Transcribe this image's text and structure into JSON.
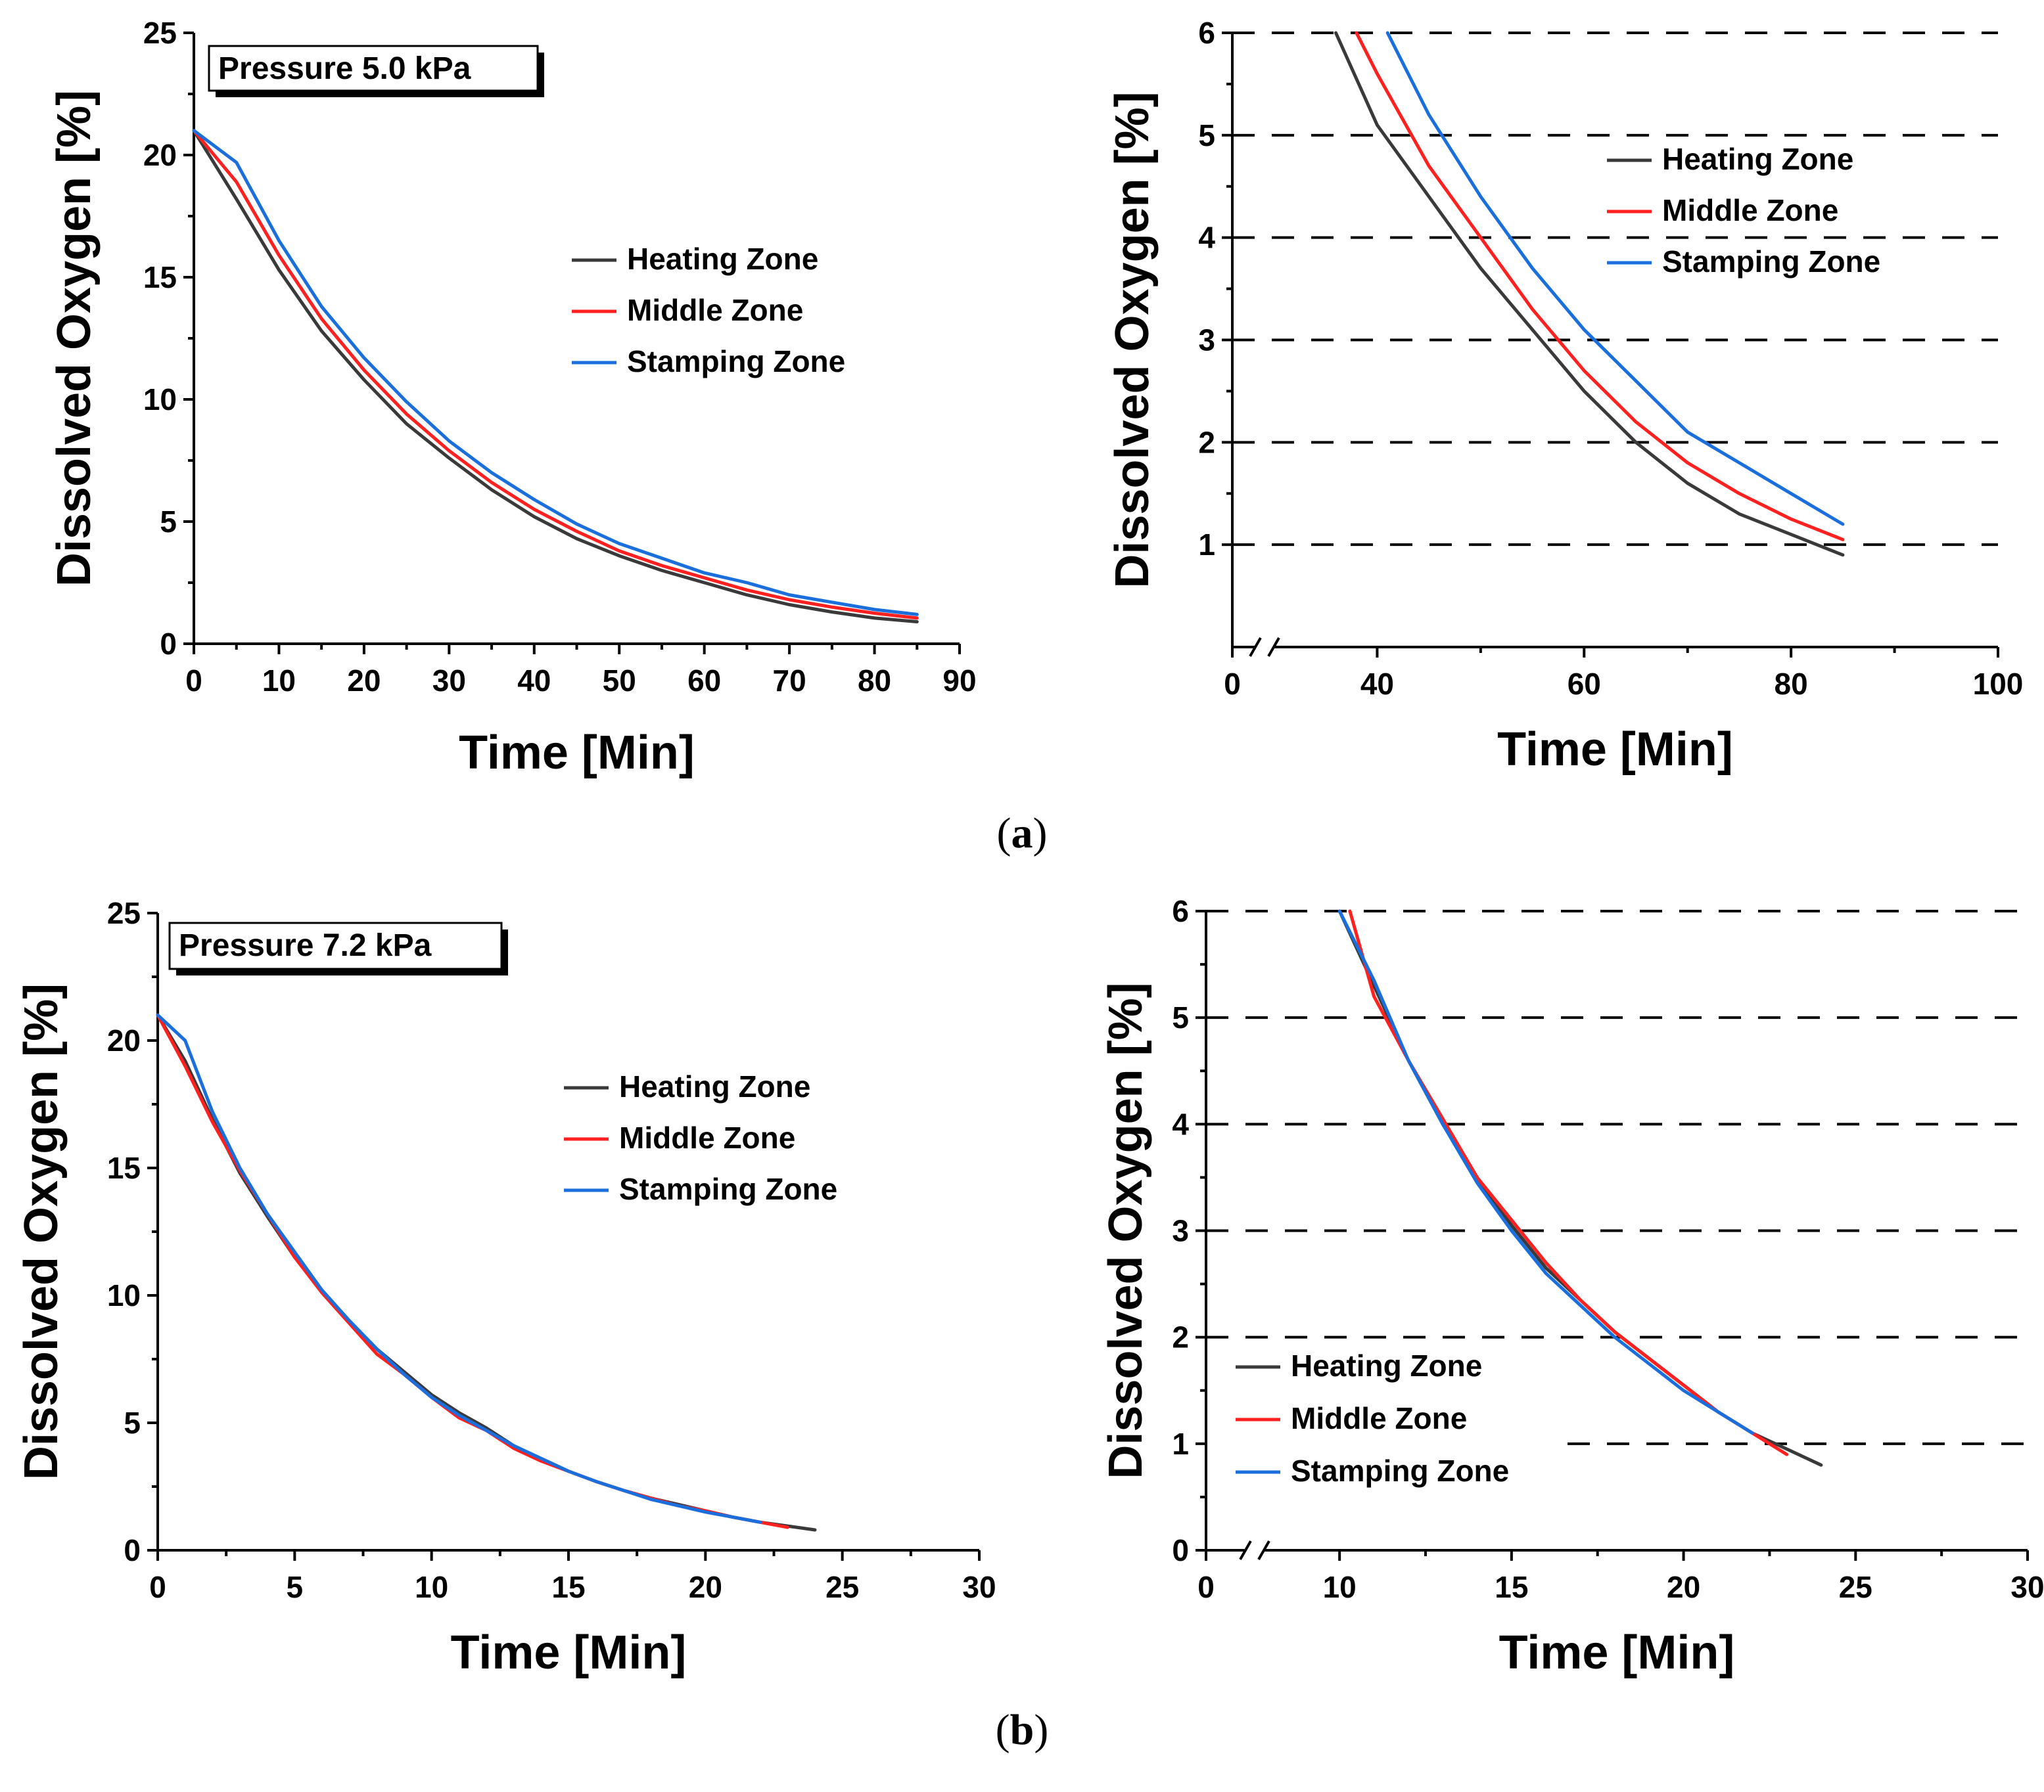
{
  "colors": {
    "heating": "#3a3a3a",
    "middle": "#ff2020",
    "stamping": "#1a6fdc",
    "axis": "#000000"
  },
  "labels": {
    "a": {
      "open": "(",
      "letter": "a",
      "close": ")"
    },
    "b": {
      "open": "(",
      "letter": "b",
      "close": ")"
    }
  },
  "chart_data": [
    {
      "id": "a-left",
      "type": "line",
      "annotation": "Pressure 5.0 kPa",
      "xlabel": "Time [Min]",
      "ylabel": "Dissolved Oxygen [%]",
      "xlim": [
        0,
        90
      ],
      "ylim": [
        0,
        25
      ],
      "xticks": [
        "0",
        "10",
        "20",
        "30",
        "40",
        "50",
        "60",
        "70",
        "80",
        "90"
      ],
      "yticks": [
        "0",
        "5",
        "10",
        "15",
        "20",
        "25"
      ],
      "grid": false,
      "legend_position": "center-right",
      "series": [
        {
          "name": "Heating Zone",
          "color": "#3a3a3a",
          "x": [
            0,
            5,
            10,
            15,
            20,
            25,
            30,
            35,
            40,
            45,
            50,
            55,
            60,
            65,
            70,
            75,
            80,
            85
          ],
          "y": [
            21.0,
            18.2,
            15.3,
            12.8,
            10.8,
            9.0,
            7.6,
            6.3,
            5.2,
            4.3,
            3.6,
            3.0,
            2.5,
            2.0,
            1.6,
            1.3,
            1.05,
            0.9
          ]
        },
        {
          "name": "Middle Zone",
          "color": "#ff2020",
          "x": [
            0,
            5,
            10,
            15,
            20,
            25,
            30,
            35,
            40,
            45,
            50,
            55,
            60,
            65,
            70,
            75,
            80,
            85
          ],
          "y": [
            21.0,
            18.9,
            15.9,
            13.3,
            11.2,
            9.4,
            7.9,
            6.6,
            5.5,
            4.6,
            3.8,
            3.2,
            2.7,
            2.2,
            1.8,
            1.5,
            1.25,
            1.05
          ]
        },
        {
          "name": "Stamping Zone",
          "color": "#1a6fdc",
          "x": [
            0,
            5,
            10,
            15,
            20,
            25,
            30,
            35,
            40,
            45,
            50,
            55,
            60,
            65,
            70,
            75,
            80,
            85
          ],
          "y": [
            21.0,
            19.7,
            16.5,
            13.8,
            11.7,
            9.9,
            8.3,
            7.0,
            5.9,
            4.9,
            4.1,
            3.5,
            2.9,
            2.5,
            2.0,
            1.7,
            1.4,
            1.2
          ]
        }
      ]
    },
    {
      "id": "a-right",
      "type": "line",
      "xlabel": "Time [Min]",
      "ylabel": "Dissolved Oxygen [%]",
      "xlim": [
        0,
        100
      ],
      "ylim": [
        0,
        6
      ],
      "axis_break": true,
      "xticks": [
        "0",
        "40",
        "60",
        "80",
        "100"
      ],
      "yticks": [
        "1",
        "2",
        "3",
        "4",
        "5",
        "6"
      ],
      "grid": "dashed horizontal at y = 1-6",
      "legend_position": "top-right",
      "series": [
        {
          "name": "Heating Zone",
          "color": "#3a3a3a",
          "x": [
            36,
            40,
            45,
            50,
            55,
            60,
            65,
            70,
            75,
            80,
            85
          ],
          "y": [
            6.0,
            5.1,
            4.4,
            3.7,
            3.1,
            2.5,
            2.0,
            1.6,
            1.3,
            1.1,
            0.9
          ]
        },
        {
          "name": "Middle Zone",
          "color": "#ff2020",
          "x": [
            38,
            40,
            45,
            50,
            55,
            60,
            65,
            70,
            75,
            80,
            85
          ],
          "y": [
            6.0,
            5.6,
            4.7,
            4.0,
            3.3,
            2.7,
            2.2,
            1.8,
            1.5,
            1.25,
            1.05
          ]
        },
        {
          "name": "Stamping Zone",
          "color": "#1a6fdc",
          "x": [
            41,
            45,
            50,
            55,
            60,
            65,
            70,
            75,
            80,
            85
          ],
          "y": [
            6.0,
            5.2,
            4.4,
            3.7,
            3.1,
            2.6,
            2.1,
            1.8,
            1.5,
            1.2
          ]
        }
      ]
    },
    {
      "id": "b-left",
      "type": "line",
      "annotation": "Pressure 7.2 kPa",
      "xlabel": "Time [Min]",
      "ylabel": "Dissolved Oxygen [%]",
      "xlim": [
        0,
        30
      ],
      "ylim": [
        0,
        25
      ],
      "xticks": [
        "0",
        "5",
        "10",
        "15",
        "20",
        "25",
        "30"
      ],
      "yticks": [
        "0",
        "5",
        "10",
        "15",
        "20",
        "25"
      ],
      "grid": false,
      "legend_position": "center-right",
      "series": [
        {
          "name": "Heating Zone",
          "color": "#3a3a3a",
          "x": [
            0,
            1,
            2,
            3,
            4,
            5,
            6,
            7,
            8,
            9,
            10,
            11,
            12,
            13,
            14,
            15,
            16,
            17,
            18,
            19,
            20,
            21,
            22,
            23,
            24
          ],
          "y": [
            21.0,
            19.2,
            16.9,
            14.8,
            13.1,
            11.5,
            10.2,
            9.0,
            7.9,
            7.0,
            6.1,
            5.4,
            4.8,
            4.1,
            3.6,
            3.1,
            2.7,
            2.35,
            2.05,
            1.8,
            1.55,
            1.3,
            1.1,
            0.95,
            0.8
          ]
        },
        {
          "name": "Middle Zone",
          "color": "#ff2020",
          "x": [
            0,
            1,
            2,
            3,
            4,
            5,
            6,
            7,
            8,
            9,
            10,
            11,
            12,
            13,
            14,
            15,
            16,
            17,
            18,
            19,
            20,
            21,
            22,
            23
          ],
          "y": [
            21.0,
            19.0,
            16.8,
            14.9,
            13.2,
            11.5,
            10.1,
            8.9,
            7.7,
            6.9,
            6.0,
            5.2,
            4.7,
            4.0,
            3.5,
            3.1,
            2.7,
            2.35,
            2.05,
            1.75,
            1.55,
            1.3,
            1.1,
            0.9
          ]
        },
        {
          "name": "Stamping Zone",
          "color": "#1a6fdc",
          "x": [
            0,
            1,
            2,
            3,
            4,
            5,
            6,
            7,
            8,
            9,
            10,
            11,
            12,
            13,
            14,
            15,
            16,
            17,
            18,
            19,
            20,
            21,
            22
          ],
          "y": [
            21.0,
            20.0,
            17.2,
            15.0,
            13.2,
            11.7,
            10.2,
            9.0,
            7.9,
            6.9,
            6.0,
            5.3,
            4.7,
            4.1,
            3.6,
            3.1,
            2.7,
            2.35,
            2.0,
            1.75,
            1.5,
            1.3,
            1.1
          ]
        }
      ]
    },
    {
      "id": "b-right",
      "type": "line",
      "xlabel": "Time [Min]",
      "ylabel": "Dissolved Oxygen [%]",
      "xlim": [
        0,
        30
      ],
      "ylim": [
        0,
        6
      ],
      "axis_break": true,
      "xticks": [
        "0",
        "10",
        "15",
        "20",
        "25",
        "30"
      ],
      "yticks": [
        "0",
        "1",
        "2",
        "3",
        "4",
        "5",
        "6"
      ],
      "grid": "dashed horizontal at y = 1-6",
      "legend_position": "bottom-left",
      "series": [
        {
          "name": "Heating Zone",
          "color": "#3a3a3a",
          "x": [
            10,
            11,
            12,
            13,
            14,
            15,
            16,
            17,
            18,
            19,
            20,
            21,
            22,
            23,
            24
          ],
          "y": [
            6.0,
            5.3,
            4.6,
            4.0,
            3.5,
            3.05,
            2.65,
            2.35,
            2.05,
            1.8,
            1.55,
            1.3,
            1.1,
            0.95,
            0.8
          ]
        },
        {
          "name": "Middle Zone",
          "color": "#ff2020",
          "x": [
            10.3,
            11,
            12,
            13,
            14,
            15,
            16,
            17,
            18,
            19,
            20,
            21,
            22,
            23
          ],
          "y": [
            6.0,
            5.2,
            4.6,
            4.05,
            3.5,
            3.1,
            2.7,
            2.35,
            2.05,
            1.8,
            1.55,
            1.3,
            1.1,
            0.9
          ]
        },
        {
          "name": "Stamping Zone",
          "color": "#1a6fdc",
          "x": [
            10,
            11,
            12,
            13,
            14,
            15,
            16,
            17,
            18,
            19,
            20,
            21,
            22
          ],
          "y": [
            6.0,
            5.35,
            4.6,
            4.0,
            3.45,
            3.0,
            2.6,
            2.3,
            2.0,
            1.75,
            1.5,
            1.3,
            1.1
          ]
        }
      ]
    }
  ]
}
